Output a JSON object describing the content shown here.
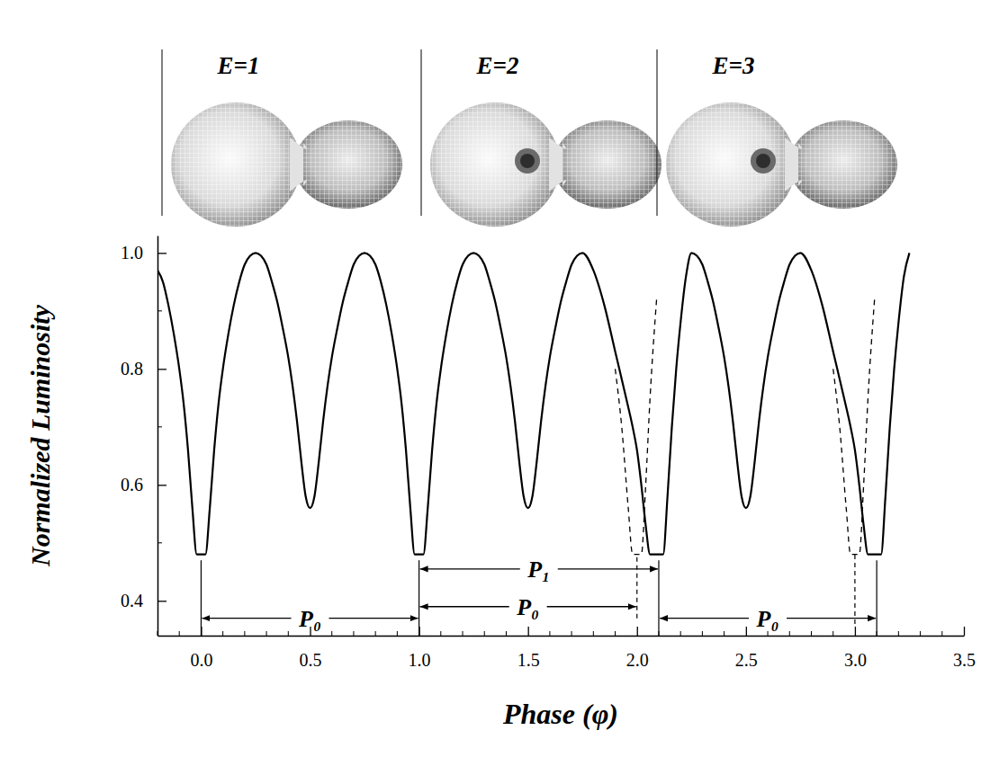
{
  "chart_data": {
    "type": "line",
    "x_label": "Phase (φ)",
    "y_label": "Normalized Luminosity",
    "xlim": [
      -0.2,
      3.5
    ],
    "xticks": [
      {
        "value": 0,
        "label": "0.0"
      },
      0.5,
      {
        "value": 1,
        "label": "1.0"
      },
      1.5,
      {
        "value": 2,
        "label": "2.0"
      },
      2.5,
      {
        "value": 3,
        "label": "3.0"
      },
      3.5
    ],
    "xticks_minor": [
      -0.2,
      -0.1,
      0.1,
      0.2,
      0.3,
      0.4,
      0.6,
      0.7,
      0.8,
      0.9,
      1.1,
      1.2,
      1.3,
      1.4,
      1.6,
      1.7,
      1.8,
      1.9,
      2.1,
      2.2,
      2.3,
      2.4,
      2.6,
      2.7,
      2.8,
      2.9,
      3.1,
      3.2,
      3.3,
      3.4
    ],
    "ylim": [
      0.34,
      1.03
    ],
    "yticks": [
      0.4,
      0.6,
      0.8,
      {
        "value": 1,
        "label": "1.0"
      }
    ],
    "yticks_minor": [
      0.5,
      0.7,
      0.9
    ],
    "grid": false,
    "series": [
      {
        "color": "#000000",
        "line_style": "solid",
        "x": [
          -0.2,
          -0.175,
          -0.15,
          -0.125,
          -0.1,
          -0.08,
          -0.06,
          -0.04,
          -0.02,
          0.02,
          0.04,
          0.06,
          0.08,
          0.1,
          0.125,
          0.15,
          0.175,
          0.2,
          0.225,
          0.25,
          0.275,
          0.3,
          0.325,
          0.35,
          0.375,
          0.4,
          0.42,
          0.44,
          0.46,
          0.48,
          0.5,
          0.52,
          0.54,
          0.56,
          0.58,
          0.6,
          0.625,
          0.65,
          0.675,
          0.7,
          0.725,
          0.75,
          0.775,
          0.8,
          0.825,
          0.85,
          0.875,
          0.9,
          0.92,
          0.94,
          0.96,
          0.98,
          1.02,
          1.04,
          1.06,
          1.08,
          1.1,
          1.125,
          1.15,
          1.175,
          1.2,
          1.225,
          1.25,
          1.275,
          1.3,
          1.325,
          1.35,
          1.375,
          1.4,
          1.42,
          1.44,
          1.46,
          1.48,
          1.5,
          1.52,
          1.54,
          1.56,
          1.58,
          1.6,
          1.625,
          1.65,
          1.675,
          1.7,
          1.725,
          1.75,
          1.8,
          1.85,
          1.9,
          1.95,
          1.98,
          2.0,
          2.02,
          2.04,
          2.06,
          2.12,
          2.14,
          2.16,
          2.18,
          2.2,
          2.225,
          2.25,
          2.275,
          2.3,
          2.325,
          2.35,
          2.375,
          2.4,
          2.42,
          2.44,
          2.46,
          2.48,
          2.5,
          2.52,
          2.54,
          2.56,
          2.58,
          2.6,
          2.625,
          2.65,
          2.675,
          2.7,
          2.725,
          2.75,
          2.8,
          2.85,
          2.9,
          2.95,
          2.98,
          3.0,
          3.02,
          3.04,
          3.06,
          3.12,
          3.14,
          3.16,
          3.18,
          3.2,
          3.225,
          3.25
        ],
        "values": [
          0.97,
          0.95,
          0.91,
          0.86,
          0.8,
          0.74,
          0.66,
          0.56,
          0.48,
          0.48,
          0.56,
          0.66,
          0.74,
          0.8,
          0.86,
          0.91,
          0.95,
          0.98,
          0.995,
          1.0,
          0.995,
          0.98,
          0.95,
          0.915,
          0.87,
          0.82,
          0.77,
          0.71,
          0.64,
          0.58,
          0.56,
          0.58,
          0.64,
          0.71,
          0.77,
          0.82,
          0.87,
          0.915,
          0.95,
          0.98,
          0.995,
          1.0,
          0.995,
          0.98,
          0.95,
          0.91,
          0.86,
          0.8,
          0.74,
          0.66,
          0.56,
          0.48,
          0.48,
          0.56,
          0.66,
          0.74,
          0.8,
          0.86,
          0.91,
          0.95,
          0.98,
          0.995,
          1.0,
          0.995,
          0.98,
          0.95,
          0.915,
          0.87,
          0.82,
          0.77,
          0.71,
          0.64,
          0.58,
          0.56,
          0.58,
          0.64,
          0.71,
          0.77,
          0.82,
          0.87,
          0.915,
          0.95,
          0.98,
          0.995,
          1.0,
          0.97,
          0.91,
          0.83,
          0.75,
          0.7,
          0.66,
          0.6,
          0.53,
          0.48,
          0.48,
          0.58,
          0.7,
          0.8,
          0.88,
          0.96,
          1.0,
          0.995,
          0.98,
          0.95,
          0.915,
          0.87,
          0.82,
          0.77,
          0.71,
          0.64,
          0.58,
          0.56,
          0.58,
          0.64,
          0.71,
          0.77,
          0.82,
          0.87,
          0.915,
          0.95,
          0.98,
          0.995,
          1.0,
          0.97,
          0.91,
          0.83,
          0.75,
          0.7,
          0.66,
          0.6,
          0.53,
          0.48,
          0.48,
          0.58,
          0.7,
          0.8,
          0.88,
          0.96,
          1.0
        ]
      },
      {
        "color": "#000000",
        "line_style": "dashed",
        "x": [
          1.9,
          1.93,
          1.96,
          1.98,
          2.02,
          2.04,
          2.06,
          2.09,
          2.5,
          2.9,
          2.93,
          2.96,
          2.98,
          3.02,
          3.04,
          3.06,
          3.09
        ],
        "values": [
          0.8,
          0.7,
          0.56,
          0.48,
          0.48,
          0.6,
          0.75,
          0.92,
          null,
          0.8,
          0.7,
          0.56,
          0.48,
          0.48,
          0.6,
          0.75,
          0.92
        ]
      }
    ],
    "reference_lines": [
      {
        "x": 0,
        "y": [
          0.34,
          0.47
        ],
        "line_style": "solid"
      },
      {
        "x": 1,
        "y": [
          0.34,
          0.47
        ],
        "line_style": "solid"
      },
      {
        "x": 2.1,
        "y": [
          0.34,
          0.47
        ],
        "line_style": "solid"
      },
      {
        "x": 3.1,
        "y": [
          0.34,
          0.47
        ],
        "line_style": "solid"
      },
      {
        "x": 2,
        "y": [
          0.37,
          0.48
        ],
        "line_style": "dashed"
      },
      {
        "x": 3,
        "y": [
          0.36,
          0.48
        ],
        "line_style": "dashed"
      }
    ],
    "period_arrows": [
      {
        "label": "P₀",
        "x": [
          0,
          1
        ],
        "y": 0.37
      },
      {
        "label": "P₁",
        "x": [
          1,
          2.1
        ],
        "y": 0.455
      },
      {
        "label": "P₀",
        "x": [
          1,
          2
        ],
        "y": 0.39
      },
      {
        "label": "P₀",
        "x": [
          2.1,
          3.1
        ],
        "y": 0.37
      }
    ],
    "panels": [
      {
        "label": "E=1",
        "spot": false
      },
      {
        "label": "E=2",
        "spot": true
      },
      {
        "label": "E=3",
        "spot": true
      }
    ]
  }
}
